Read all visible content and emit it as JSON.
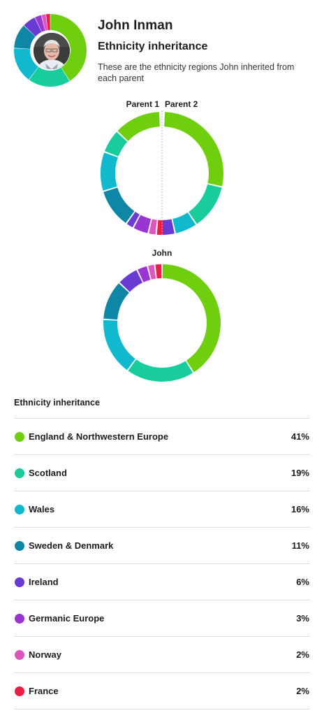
{
  "profile": {
    "name": "John Inman",
    "subtitle": "Ethnicity inheritance",
    "description": "These are the ethnicity regions John inherited from each parent"
  },
  "parents": {
    "parent1_label": "Parent 1",
    "parent2_label": "Parent 2"
  },
  "child": {
    "label": "John"
  },
  "table": {
    "title": "Ethnicity inheritance"
  },
  "regions": [
    {
      "name": "England & Northwestern Europe",
      "percent": "41%",
      "color": "#6fcf0f"
    },
    {
      "name": "Scotland",
      "percent": "19%",
      "color": "#19cc9c"
    },
    {
      "name": "Wales",
      "percent": "16%",
      "color": "#11b9cf"
    },
    {
      "name": "Sweden & Denmark",
      "percent": "11%",
      "color": "#0e87a6"
    },
    {
      "name": "Ireland",
      "percent": "6%",
      "color": "#6a3ad4"
    },
    {
      "name": "Germanic Europe",
      "percent": "3%",
      "color": "#9b35d1"
    },
    {
      "name": "Norway",
      "percent": "2%",
      "color": "#dd55bf"
    },
    {
      "name": "France",
      "percent": "2%",
      "color": "#ea1f46"
    }
  ],
  "chart_data": [
    {
      "type": "pie",
      "name": "child",
      "categories": [
        "England & Northwestern Europe",
        "Scotland",
        "Wales",
        "Sweden & Denmark",
        "Ireland",
        "Germanic Europe",
        "Norway",
        "France"
      ],
      "values": [
        41,
        19,
        16,
        11,
        6,
        3,
        2,
        2
      ]
    },
    {
      "type": "pie",
      "name": "parent1",
      "categories": [
        "England & Northwestern Europe",
        "Scotland",
        "Wales",
        "Sweden & Denmark",
        "Ireland",
        "Germanic Europe",
        "Norway",
        "France"
      ],
      "values": [
        12,
        6,
        10,
        10,
        2,
        4,
        2,
        2
      ]
    },
    {
      "type": "pie",
      "name": "parent2",
      "categories": [
        "England & Northwestern Europe",
        "Scotland",
        "Wales",
        "Ireland"
      ],
      "values": [
        28,
        12,
        6,
        4
      ]
    }
  ]
}
